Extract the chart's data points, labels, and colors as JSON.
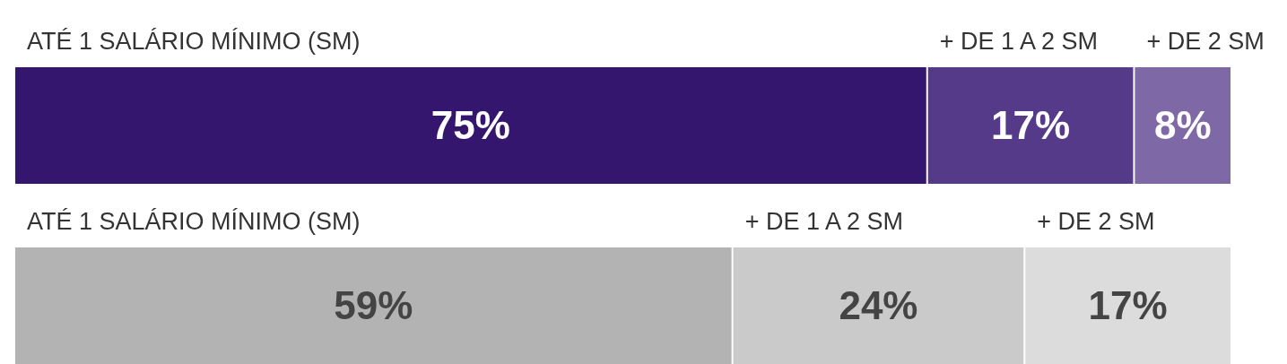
{
  "chart_data": {
    "type": "bar",
    "orientation": "horizontal",
    "stacked": true,
    "categories": [
      null,
      null
    ],
    "xlim": [
      0,
      100
    ],
    "legend": false,
    "series": [
      {
        "name": "ATÉ 1 SALÁRIO MÍNIMO (SM)",
        "colors": [
          "#35166e",
          "#b3b3b3"
        ],
        "values": [
          75,
          59
        ],
        "value_labels": [
          "75%",
          "59%"
        ]
      },
      {
        "name": "+ DE 1 A 2 SM",
        "colors": [
          "#553a8a",
          "#cacaca"
        ],
        "values": [
          17,
          24
        ],
        "value_labels": [
          "17%",
          "24%"
        ]
      },
      {
        "name": "+ DE 2 SM",
        "colors": [
          "#7e68a5",
          "#dcdcdc"
        ],
        "values": [
          8,
          17
        ],
        "value_labels": [
          "8%",
          "17%"
        ]
      }
    ]
  }
}
